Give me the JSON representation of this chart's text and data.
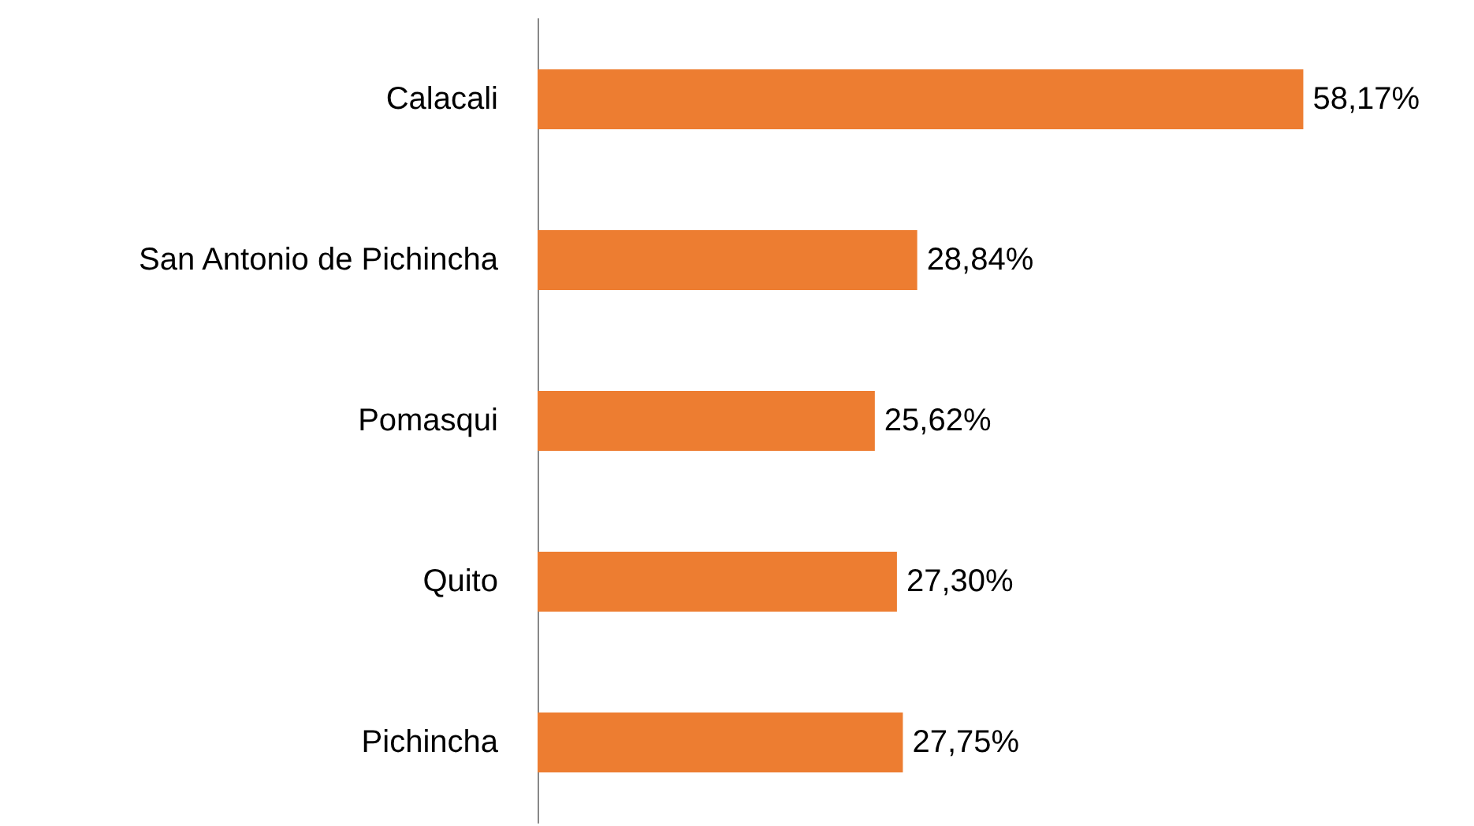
{
  "chart_data": {
    "type": "bar",
    "orientation": "horizontal",
    "categories": [
      "Calacali",
      "San Antonio de Pichincha",
      "Pomasqui",
      "Quito",
      "Pichincha"
    ],
    "values": [
      58.17,
      28.84,
      25.62,
      27.3,
      27.75
    ],
    "value_labels": [
      "58,17%",
      "28,84%",
      "25,62%",
      "27,30%",
      "27,75%"
    ],
    "color": "#ed7d31"
  }
}
